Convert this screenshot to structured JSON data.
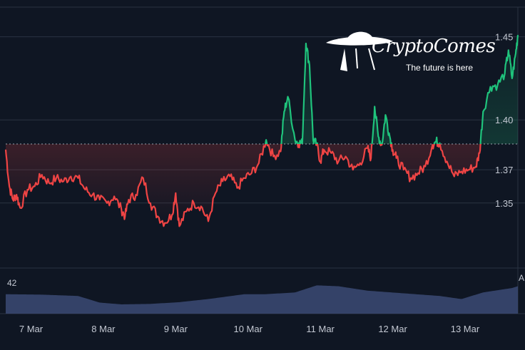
{
  "brand": {
    "name": "CryptoComes",
    "tagline": "The future is here"
  },
  "colors": {
    "background": "#0f1623",
    "up": "#1fc37c",
    "down": "#ef4444",
    "baseline": "#9aa3ad",
    "grid": "#2a3342",
    "volume": "#3b4a74"
  },
  "chart_data": {
    "type": "line",
    "subtype": "baseline",
    "baseline": 1.3855,
    "ylim": [
      1.31,
      1.467
    ],
    "xlim": [
      0,
      7.08
    ],
    "y_ticks": [
      1.35,
      1.37,
      1.4,
      1.45
    ],
    "y_tick_labels": [
      "1.35",
      "1.37",
      "1.40",
      "1.45"
    ],
    "x_ticks": [
      0.35,
      1.35,
      2.35,
      3.35,
      4.35,
      5.35,
      6.35
    ],
    "x_tick_labels": [
      "7 Mar",
      "8 Mar",
      "9 Mar",
      "10 Mar",
      "11 Mar",
      "12 Mar",
      "13 Mar"
    ],
    "grid": true,
    "series": [
      {
        "x": [
          0.0,
          0.05,
          0.1,
          0.15,
          0.2,
          0.3,
          0.4,
          0.5,
          0.6,
          0.7,
          0.8,
          0.9,
          1.0,
          1.1,
          1.2,
          1.3,
          1.4,
          1.5,
          1.6,
          1.65,
          1.7,
          1.8,
          1.9,
          2.0,
          2.1,
          2.2,
          2.3,
          2.35,
          2.4,
          2.5,
          2.6,
          2.7,
          2.8,
          2.9,
          3.0,
          3.1,
          3.2,
          3.3,
          3.4,
          3.5,
          3.6,
          3.7,
          3.8,
          3.85,
          3.9,
          4.0,
          4.05,
          4.1,
          4.15,
          4.2,
          4.25,
          4.3,
          4.35,
          4.4,
          4.5,
          4.6,
          4.7,
          4.8,
          4.9,
          5.0,
          5.05,
          5.1,
          5.15,
          5.2,
          5.25,
          5.3,
          5.35,
          5.4,
          5.5,
          5.6,
          5.7,
          5.8,
          5.9,
          5.95,
          6.0,
          6.1,
          6.2,
          6.3,
          6.4,
          6.5,
          6.55,
          6.6,
          6.7,
          6.8,
          6.9,
          6.95,
          7.0,
          7.05,
          7.08
        ],
        "values": [
          1.382,
          1.36,
          1.352,
          1.355,
          1.347,
          1.358,
          1.36,
          1.367,
          1.362,
          1.365,
          1.363,
          1.366,
          1.365,
          1.358,
          1.355,
          1.352,
          1.35,
          1.354,
          1.346,
          1.342,
          1.352,
          1.355,
          1.365,
          1.35,
          1.342,
          1.338,
          1.343,
          1.356,
          1.336,
          1.345,
          1.35,
          1.348,
          1.339,
          1.356,
          1.363,
          1.366,
          1.359,
          1.365,
          1.368,
          1.374,
          1.388,
          1.378,
          1.381,
          1.405,
          1.414,
          1.388,
          1.386,
          1.386,
          1.446,
          1.433,
          1.388,
          1.385,
          1.375,
          1.382,
          1.38,
          1.375,
          1.378,
          1.37,
          1.374,
          1.383,
          1.377,
          1.408,
          1.39,
          1.385,
          1.403,
          1.392,
          1.382,
          1.377,
          1.37,
          1.365,
          1.368,
          1.372,
          1.385,
          1.387,
          1.386,
          1.375,
          1.366,
          1.369,
          1.37,
          1.372,
          1.38,
          1.405,
          1.42,
          1.421,
          1.428,
          1.442,
          1.425,
          1.44,
          1.451
        ]
      }
    ],
    "volume": {
      "x": [
        0.0,
        0.5,
        1.0,
        1.3,
        1.6,
        2.0,
        2.4,
        2.8,
        3.3,
        3.6,
        4.0,
        4.3,
        4.6,
        5.0,
        5.5,
        6.0,
        6.3,
        6.6,
        7.0,
        7.08
      ],
      "values": [
        44,
        43,
        40,
        25,
        21,
        22,
        26,
        33,
        44,
        44,
        48,
        64,
        62,
        52,
        46,
        40,
        33,
        48,
        58,
        62
      ]
    },
    "volume_labels": [
      "42",
      "A"
    ]
  }
}
